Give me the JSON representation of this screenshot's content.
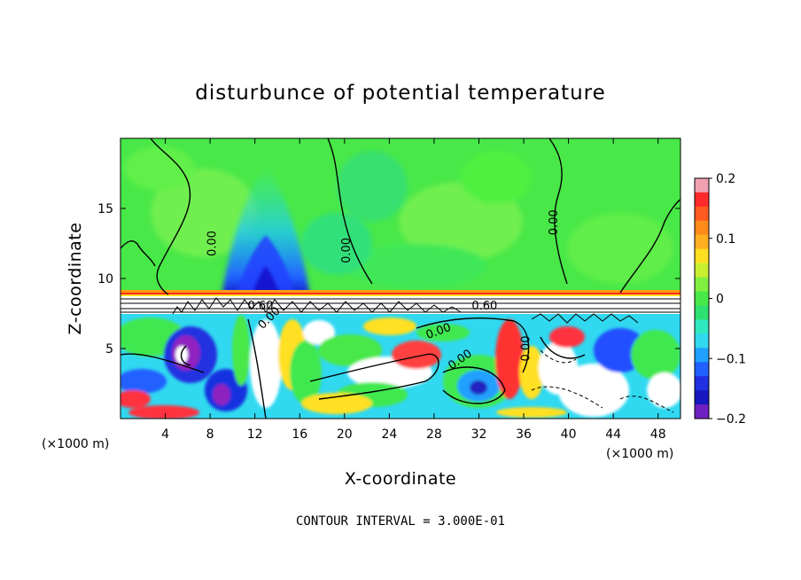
{
  "chart_data": {
    "type": "heatmap",
    "title": "disturbunce of potential temperature",
    "xlabel": "X-coordinate",
    "ylabel": "Z-coordinate",
    "x_unit_label": "(×1000 m)",
    "x_unit_label_right": "(×1000 m)",
    "xlim": [
      0,
      50
    ],
    "ylim": [
      0,
      20
    ],
    "x_ticks": [
      4,
      8,
      12,
      16,
      20,
      24,
      28,
      32,
      36,
      40,
      44,
      48
    ],
    "x_tick_labels": [
      "4",
      "8",
      "12",
      "16",
      "20",
      "24",
      "28",
      "32",
      "36",
      "40",
      "44",
      "48"
    ],
    "y_ticks": [
      5,
      10,
      15
    ],
    "y_tick_labels": [
      "5",
      "10",
      "15"
    ],
    "colorbar": {
      "min": -0.2,
      "max": 0.2,
      "labels": [
        {
          "value": 0.2,
          "text": "0.2"
        },
        {
          "value": 0.1,
          "text": "0.1"
        },
        {
          "value": 0,
          "text": "0"
        },
        {
          "value": -0.1,
          "text": "−0.1"
        },
        {
          "value": -0.2,
          "text": "−0.2"
        }
      ]
    },
    "contour_labels": [
      {
        "x": 8.5,
        "z": 12.5,
        "text": "0.00",
        "rotate": -90
      },
      {
        "x": 20.5,
        "z": 12.0,
        "text": "0.00",
        "rotate": -90
      },
      {
        "x": 39.0,
        "z": 14.0,
        "text": "0.00",
        "rotate": -90
      },
      {
        "x": 12.5,
        "z": 7.8,
        "text": "0.60",
        "rotate": 0
      },
      {
        "x": 13.5,
        "z": 7.0,
        "text": "0.00",
        "rotate": -45
      },
      {
        "x": 28.5,
        "z": 6.0,
        "text": "0.00",
        "rotate": -20
      },
      {
        "x": 30.5,
        "z": 4.0,
        "text": "0.00",
        "rotate": -35
      },
      {
        "x": 32.5,
        "z": 7.8,
        "text": "0.60",
        "rotate": 0
      },
      {
        "x": 36.5,
        "z": 5.0,
        "text": "0.00",
        "rotate": -90
      }
    ],
    "contour_interval_text": "CONTOUR INTERVAL = 3.000E-01"
  }
}
